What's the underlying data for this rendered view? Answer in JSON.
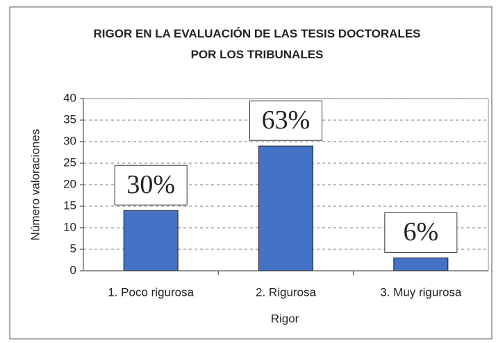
{
  "chart_data": {
    "type": "bar",
    "title": "RIGOR EN LA EVALUACIÓN DE LAS TESIS DOCTORALES POR LOS TRIBUNALES",
    "x_label": "Rigor",
    "y_label": "Número valoraciones",
    "categories": [
      "1. Poco rigurosa",
      "2. Rigurosa",
      "3. Muy rigurosa"
    ],
    "values": [
      14,
      29,
      3
    ],
    "annotations": [
      "30%",
      "63%",
      "6%"
    ],
    "color": "#4472c4",
    "ylim": [
      0,
      40
    ],
    "yticks": [
      0,
      5,
      10,
      15,
      20,
      25,
      30,
      35,
      40
    ],
    "grid": true
  }
}
